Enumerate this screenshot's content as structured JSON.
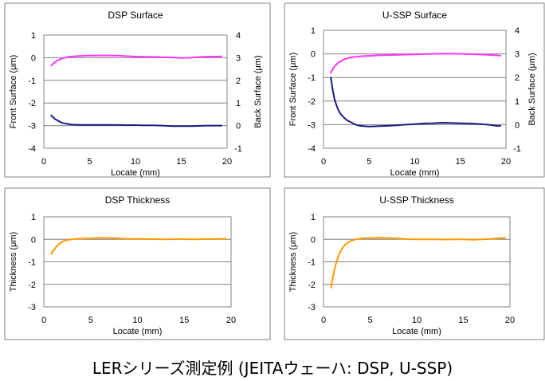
{
  "caption": "LERシリーズ測定例 (JEITAウェーハ: DSP, U-SSP)",
  "colors": {
    "front": "#ff33ff",
    "back": "#1a1a80",
    "thickness": "#ff9900",
    "grid": "#808080",
    "frame": "#808080"
  },
  "chart_data": [
    {
      "id": "dsp-surface",
      "type": "line",
      "title": "DSP Surface",
      "xlabel": "Locate (mm)",
      "ylabel": "Front Surface (μm)",
      "y2label": "Back Surface (μm)",
      "xlim": [
        0,
        20
      ],
      "xticks": [
        "0",
        "5",
        "10",
        "15",
        "20"
      ],
      "ylim": [
        -4,
        1
      ],
      "yticks": [
        "1",
        "0",
        "-1",
        "-2",
        "-3",
        "-4"
      ],
      "y2lim": [
        -1,
        4
      ],
      "y2ticks": [
        "4",
        "3",
        "2",
        "1",
        "0",
        "-1"
      ],
      "grid": true,
      "series": [
        {
          "axis": "left",
          "color": "#ff33ff",
          "x": [
            0.8,
            1.2,
            1.6,
            2.0,
            2.5,
            3.0,
            4.0,
            5.0,
            6.0,
            7.0,
            8.0,
            9.0,
            10.0,
            11.0,
            12.0,
            13.0,
            14.0,
            15.0,
            16.0,
            17.0,
            18.0,
            19.0,
            19.4
          ],
          "y": [
            -0.35,
            -0.2,
            -0.1,
            -0.03,
            0.02,
            0.05,
            0.08,
            0.09,
            0.1,
            0.1,
            0.09,
            0.07,
            0.05,
            0.04,
            0.03,
            0.02,
            0.01,
            -0.01,
            0.0,
            0.03,
            0.05,
            0.05,
            0.06
          ]
        },
        {
          "axis": "right",
          "color": "#1a1a80",
          "x": [
            0.8,
            1.2,
            1.6,
            2.0,
            2.5,
            3.0,
            4.0,
            5.0,
            6.0,
            7.0,
            8.0,
            9.0,
            10.0,
            11.0,
            12.0,
            13.0,
            14.0,
            15.0,
            16.0,
            17.0,
            18.0,
            19.0,
            19.4
          ],
          "y": [
            0.45,
            0.3,
            0.2,
            0.12,
            0.08,
            0.05,
            0.03,
            0.03,
            0.03,
            0.03,
            0.03,
            0.02,
            0.02,
            0.01,
            0.01,
            0.0,
            -0.02,
            -0.02,
            -0.02,
            -0.01,
            0.0,
            0.0,
            0.0
          ]
        }
      ]
    },
    {
      "id": "ussp-surface",
      "type": "line",
      "title": "U-SSP Surface",
      "xlabel": "Locate (mm)",
      "ylabel": "Front Surface (μm)",
      "y2label": "Back Surface (μm)",
      "xlim": [
        0,
        20
      ],
      "xticks": [
        "0",
        "5",
        "10",
        "15",
        "20"
      ],
      "ylim": [
        -4,
        1
      ],
      "yticks": [
        "1",
        "0",
        "-1",
        "-2",
        "-3",
        "-4"
      ],
      "y2lim": [
        -1,
        4
      ],
      "y2ticks": [
        "4",
        "3",
        "2",
        "1",
        "0",
        "-1"
      ],
      "grid": true,
      "series": [
        {
          "axis": "left",
          "color": "#ff33ff",
          "x": [
            0.8,
            1.0,
            1.3,
            1.6,
            2.0,
            2.5,
            3.0,
            4.0,
            5.0,
            6.0,
            7.0,
            8.0,
            9.0,
            10.0,
            11.0,
            12.0,
            13.0,
            14.0,
            15.0,
            16.0,
            17.0,
            18.0,
            19.0,
            19.4
          ],
          "y": [
            -0.8,
            -0.65,
            -0.5,
            -0.38,
            -0.28,
            -0.2,
            -0.15,
            -0.1,
            -0.08,
            -0.06,
            -0.05,
            -0.04,
            -0.03,
            -0.02,
            -0.01,
            0.0,
            0.01,
            0.01,
            0.0,
            -0.01,
            -0.02,
            -0.04,
            -0.06,
            -0.08
          ]
        },
        {
          "axis": "right",
          "color": "#1a1a80",
          "x": [
            0.8,
            1.0,
            1.2,
            1.4,
            1.6,
            1.8,
            2.0,
            2.3,
            2.6,
            3.0,
            3.5,
            4.0,
            5.0,
            6.0,
            7.0,
            8.0,
            9.0,
            10.0,
            11.0,
            12.0,
            13.0,
            14.0,
            15.0,
            16.0,
            17.0,
            18.0,
            19.0,
            19.4
          ],
          "y": [
            2.0,
            1.5,
            1.1,
            0.85,
            0.65,
            0.5,
            0.4,
            0.28,
            0.18,
            0.1,
            0.0,
            -0.05,
            -0.08,
            -0.06,
            -0.05,
            -0.03,
            0.0,
            0.02,
            0.05,
            0.06,
            0.08,
            0.07,
            0.06,
            0.05,
            0.03,
            0.0,
            -0.05,
            -0.05
          ]
        }
      ]
    },
    {
      "id": "dsp-thickness",
      "type": "line",
      "title": "DSP Thickness",
      "xlabel": "Locate (mm)",
      "ylabel": "Thickness (μm)",
      "xlim": [
        0,
        20
      ],
      "xticks": [
        "0",
        "5",
        "10",
        "15",
        "20"
      ],
      "ylim": [
        -3,
        1
      ],
      "yticks": [
        "1",
        "0",
        "-1",
        "-2",
        "-3"
      ],
      "grid": true,
      "series": [
        {
          "axis": "left",
          "color": "#ff9900",
          "x": [
            0.8,
            1.0,
            1.3,
            1.6,
            2.0,
            2.5,
            3.0,
            3.5,
            4.0,
            5.0,
            6.0,
            7.0,
            8.0,
            9.0,
            10.0,
            11.0,
            12.0,
            13.0,
            14.0,
            15.0,
            16.0,
            17.0,
            18.0,
            19.0,
            19.5
          ],
          "y": [
            -0.65,
            -0.5,
            -0.35,
            -0.22,
            -0.1,
            -0.03,
            0.0,
            0.02,
            0.03,
            0.04,
            0.07,
            0.06,
            0.04,
            0.02,
            0.02,
            0.01,
            0.01,
            0.0,
            0.01,
            0.01,
            0.0,
            0.01,
            0.01,
            0.02,
            0.02
          ]
        }
      ]
    },
    {
      "id": "ussp-thickness",
      "type": "line",
      "title": "U-SSP Thickness",
      "xlabel": "Locate (mm)",
      "ylabel": "Thickness (μm)",
      "xlim": [
        0,
        20
      ],
      "xticks": [
        "0",
        "5",
        "10",
        "15",
        "20"
      ],
      "ylim": [
        -3,
        1
      ],
      "yticks": [
        "1",
        "0",
        "-1",
        "-2",
        "-3"
      ],
      "grid": true,
      "series": [
        {
          "axis": "left",
          "color": "#ff9900",
          "x": [
            0.8,
            1.0,
            1.2,
            1.4,
            1.6,
            1.8,
            2.0,
            2.3,
            2.6,
            3.0,
            3.5,
            4.0,
            4.5,
            5.0,
            6.0,
            7.0,
            8.0,
            9.0,
            10.0,
            11.0,
            12.0,
            13.0,
            14.0,
            15.0,
            16.0,
            17.0,
            18.0,
            19.0,
            19.5
          ],
          "y": [
            -2.15,
            -1.7,
            -1.3,
            -1.0,
            -0.75,
            -0.55,
            -0.4,
            -0.25,
            -0.15,
            -0.06,
            0.0,
            0.03,
            0.05,
            0.06,
            0.07,
            0.06,
            0.03,
            0.01,
            0.0,
            0.0,
            0.0,
            -0.01,
            0.0,
            0.0,
            -0.02,
            0.0,
            0.02,
            0.05,
            0.06
          ]
        }
      ]
    }
  ]
}
